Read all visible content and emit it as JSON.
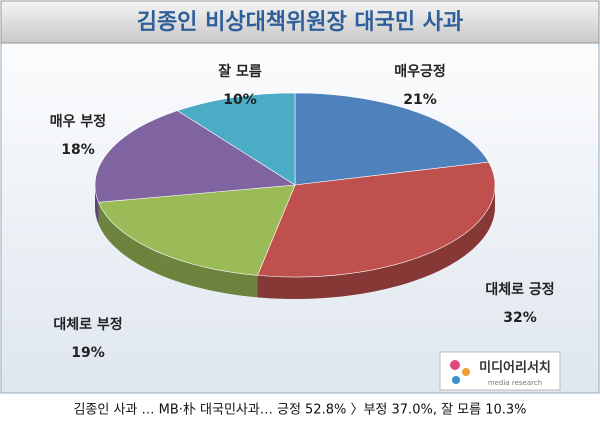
{
  "chart_data": {
    "type": "pie",
    "title": "김종인 비상대책위원장 대국민 사과",
    "categories": [
      "매우긍정",
      "대체로 긍정",
      "대체로 부정",
      "매우 부정",
      "잘 모름"
    ],
    "values": [
      21,
      32,
      19,
      18,
      10
    ],
    "value_labels": [
      "21%",
      "32%",
      "19%",
      "18%",
      "10%"
    ],
    "colors": [
      "#4f81bd",
      "#c0504d",
      "#9bbb59",
      "#8064a2",
      "#4bacc6"
    ],
    "logo": {
      "name": "미디어리서치",
      "sub": "media research"
    },
    "caption": "김종인 사과 … MB·朴 대국민사과… 긍정 52.8% 〉부정 37.0%, 잘 모름 10.3%"
  }
}
